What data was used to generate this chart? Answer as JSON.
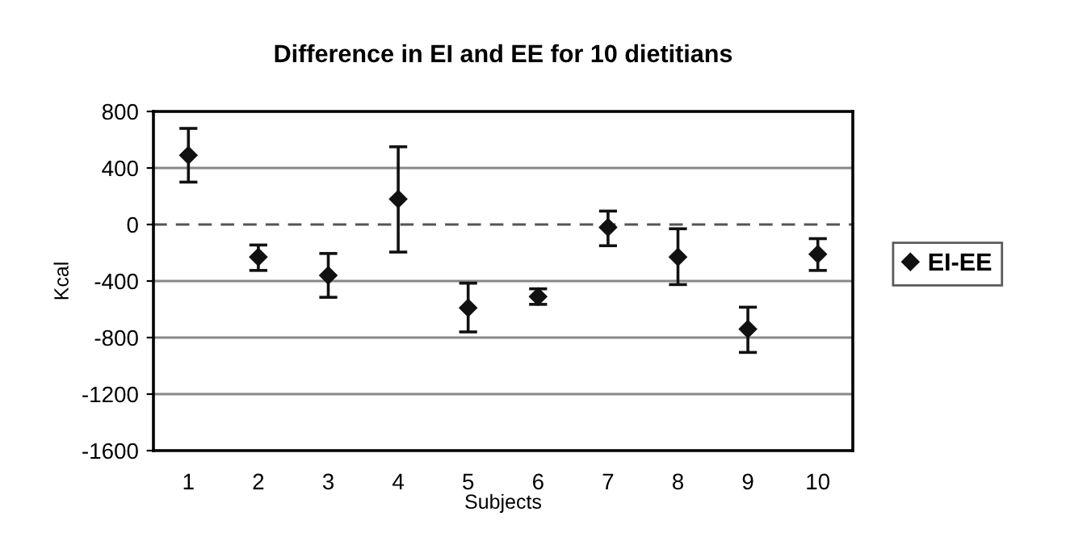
{
  "chart_data": {
    "type": "scatter",
    "title": "Difference in EI and EE for 10 dietitians",
    "xlabel": "Subjects",
    "ylabel": "Kcal",
    "categories": [
      "1",
      "2",
      "3",
      "4",
      "5",
      "6",
      "7",
      "8",
      "9",
      "10"
    ],
    "series": [
      {
        "name": "EI-EE",
        "color": "#111111",
        "values": [
          490,
          -230,
          -360,
          180,
          -590,
          -510,
          -20,
          -230,
          -740,
          -210
        ],
        "errors": [
          [
            300,
            680
          ],
          [
            -325,
            -145
          ],
          [
            -515,
            -205
          ],
          [
            -195,
            550
          ],
          [
            -760,
            -415
          ],
          [
            -565,
            -455
          ],
          [
            -150,
            95
          ],
          [
            -425,
            -30
          ],
          [
            -905,
            -585
          ],
          [
            -325,
            -100
          ]
        ]
      }
    ],
    "ylim": [
      -1600,
      800
    ],
    "yticks": [
      -1600,
      -1200,
      -800,
      -400,
      0,
      400,
      800
    ],
    "grid": "y",
    "marker": "diamond",
    "legend": "right",
    "ref_lines": [
      {
        "axis": "y",
        "value": 0,
        "line_style": "dashed",
        "color": "#555555"
      }
    ]
  }
}
